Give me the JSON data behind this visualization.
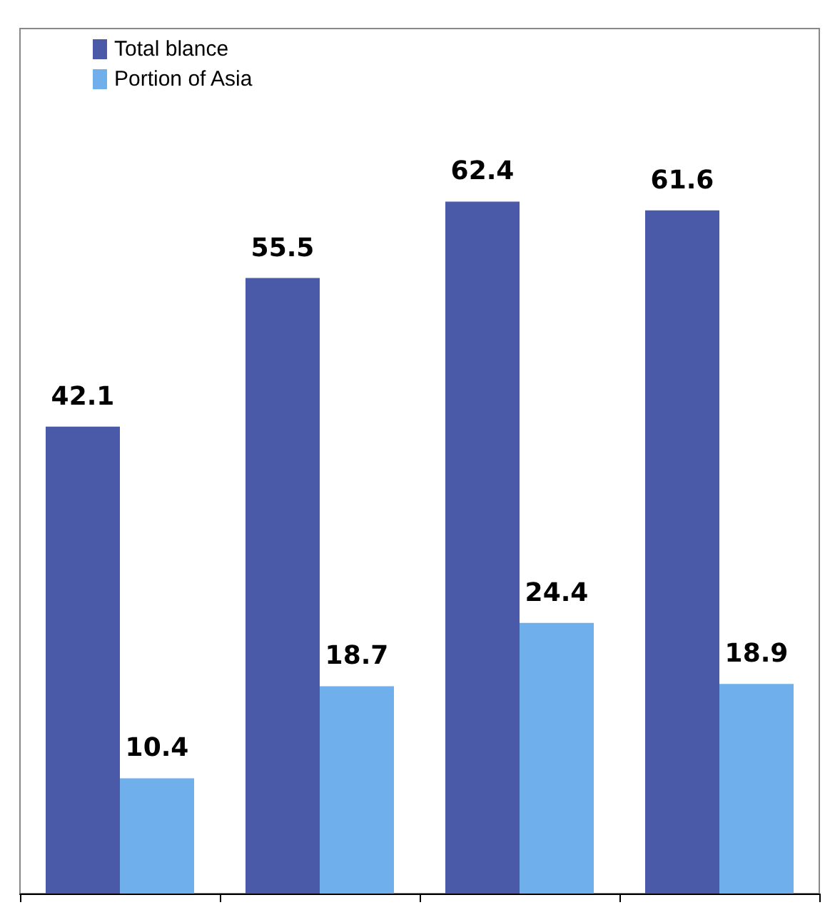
{
  "chart_data": {
    "type": "bar",
    "categories": [
      null,
      null,
      null,
      null
    ],
    "series": [
      {
        "name": "Total blance",
        "color": "#4a5aa8",
        "values": [
          42.1,
          55.5,
          62.4,
          61.6
        ]
      },
      {
        "name": "Portion of Asia",
        "color": "#6fb0ec",
        "values": [
          10.4,
          18.7,
          24.4,
          18.9
        ]
      }
    ],
    "ylim": [
      0,
      78
    ],
    "data_labels": true,
    "legend": "top left"
  }
}
